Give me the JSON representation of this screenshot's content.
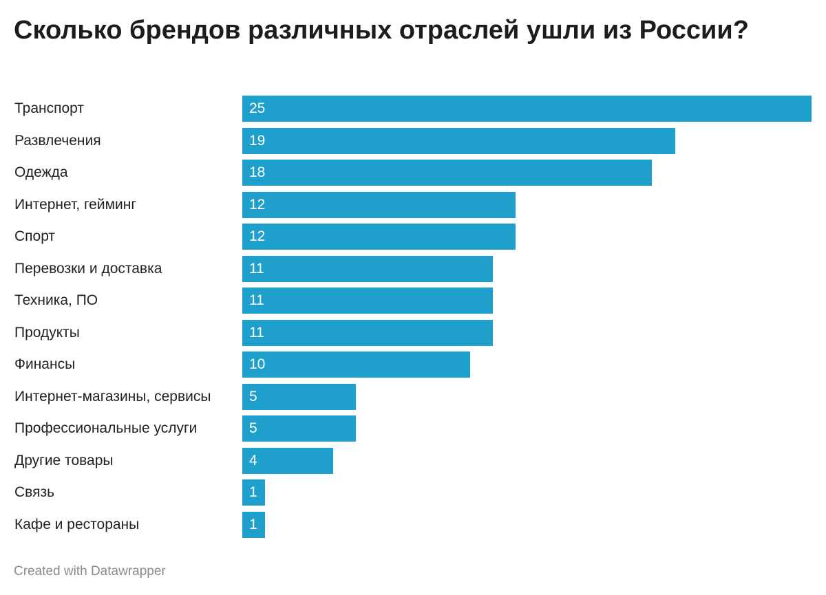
{
  "chart_data": {
    "type": "bar",
    "orientation": "horizontal",
    "title": "Сколько брендов различных отраслей ушли из России?",
    "categories": [
      "Транспорт",
      "Развлечения",
      "Одежда",
      "Интернет, гейминг",
      "Спорт",
      "Перевозки и доставка",
      "Техника, ПО",
      "Продукты",
      "Финансы",
      "Интернет-магазины, сервисы",
      "Профессиональные услуги",
      "Другие товары",
      "Связь",
      "Кафе и рестораны"
    ],
    "values": [
      25,
      19,
      18,
      12,
      12,
      11,
      11,
      11,
      10,
      5,
      5,
      4,
      1,
      1
    ],
    "xlim": [
      0,
      25
    ],
    "bar_color": "#1fa0cc",
    "value_label_color": "#ffffff",
    "xlabel": "",
    "ylabel": ""
  },
  "footer": {
    "credit": "Created with Datawrapper"
  }
}
